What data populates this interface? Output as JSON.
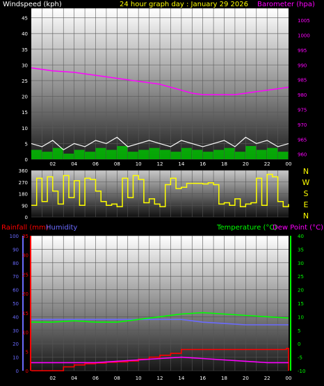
{
  "header": {
    "windspeed_label": "Windspeed (kph)",
    "title": "24 hour graph day : January 29 2026",
    "barometer_label": "Barometer (hpa)"
  },
  "bottom_header": {
    "rainfall_label": "Rainfall (mm)",
    "humidity_label": "Humidity",
    "temperature_label": "Temperature (°C)",
    "dewpoint_label": "Dew Point (°C)"
  },
  "compass": [
    "N",
    "W",
    "S",
    "E",
    "N"
  ],
  "colors": {
    "wind": "#ffffff",
    "gust_fill": "#00c800",
    "barometer": "#ff00ff",
    "direction": "#ffff00",
    "rain": "#ff0000",
    "humidity": "#6a6aff",
    "temperature": "#00ff00",
    "dewpoint": "#ff00ff",
    "rain_axis": "#ff0000",
    "humidity_axis": "#6a6aff",
    "temp_axis": "#00ff00"
  },
  "chart_data": [
    {
      "type": "line",
      "name": "wind-barometer",
      "x_ticks": [
        "02",
        "04",
        "06",
        "08",
        "10",
        "12",
        "14",
        "16",
        "18",
        "20",
        "22",
        "00"
      ],
      "y_left_ticks": [
        0,
        5,
        10,
        15,
        20,
        25,
        30,
        35,
        40,
        45
      ],
      "y_left_range": [
        0,
        48
      ],
      "y_right_ticks": [
        960,
        965,
        970,
        975,
        980,
        985,
        990,
        995,
        1000,
        1005
      ],
      "y_right_range": [
        958.3,
        1009
      ],
      "grid": true,
      "series": [
        {
          "name": "Windspeed (kph)",
          "x": [
            0,
            1,
            2,
            3,
            4,
            5,
            6,
            7,
            8,
            9,
            10,
            11,
            12,
            13,
            14,
            15,
            16,
            17,
            18,
            19,
            20,
            21,
            22,
            23,
            24
          ],
          "y": [
            5,
            4,
            6,
            3,
            5,
            4,
            6,
            5,
            7,
            4,
            5,
            6,
            5,
            4,
            6,
            5,
            4,
            5,
            6,
            4,
            7,
            5,
            6,
            4,
            5
          ]
        },
        {
          "name": "Barometer (hpa)",
          "x": [
            0,
            2,
            4,
            6,
            8,
            10,
            12,
            14,
            15,
            16,
            17,
            18,
            19,
            20,
            21,
            22,
            23,
            24
          ],
          "y": [
            989,
            988,
            987.5,
            986.5,
            985.5,
            984.5,
            983.5,
            981.5,
            980.5,
            980,
            980,
            980,
            980,
            980.5,
            981,
            981.5,
            982,
            982.5
          ]
        }
      ]
    },
    {
      "type": "line",
      "name": "wind-direction",
      "x_ticks": [
        "02",
        "04",
        "06",
        "08",
        "10",
        "12",
        "14",
        "16",
        "18",
        "20",
        "22",
        "00"
      ],
      "y_ticks": [
        0,
        90,
        180,
        270,
        360
      ],
      "y_range": [
        0,
        360
      ],
      "series": [
        {
          "name": "Wind Direction",
          "x": [
            0,
            0.5,
            1,
            1.5,
            2,
            2.5,
            3,
            3.5,
            4,
            4.5,
            5,
            5.5,
            6,
            6.5,
            7,
            7.5,
            8,
            8.5,
            9,
            9.5,
            10,
            10.5,
            11,
            11.5,
            12,
            12.5,
            13,
            13.5,
            14,
            14.5,
            15,
            15.5,
            16,
            16.5,
            17,
            17.5,
            18,
            18.5,
            19,
            19.5,
            20,
            20.5,
            21,
            21.5,
            22,
            22.5,
            23,
            23.5,
            24
          ],
          "y": [
            90,
            300,
            120,
            310,
            200,
            100,
            320,
            150,
            280,
            90,
            300,
            290,
            200,
            120,
            90,
            100,
            80,
            300,
            150,
            320,
            290,
            110,
            140,
            100,
            80,
            250,
            300,
            220,
            230,
            260,
            260,
            260,
            255,
            265,
            250,
            100,
            110,
            90,
            140,
            80,
            100,
            110,
            300,
            90,
            330,
            310,
            120,
            80,
            100
          ]
        }
      ]
    },
    {
      "type": "line",
      "name": "rain-humidity-temperature",
      "x_ticks": [
        "02",
        "04",
        "06",
        "08",
        "10",
        "12",
        "14",
        "16",
        "18",
        "20",
        "22",
        "00"
      ],
      "y_humidity_ticks": [
        0,
        10,
        20,
        30,
        40,
        50,
        60,
        70,
        80,
        90,
        100
      ],
      "y_rain_ticks": [
        0,
        5,
        10,
        15,
        20,
        25,
        30,
        35
      ],
      "y_rain_range": [
        0,
        35
      ],
      "y_temp_ticks": [
        -10,
        -5,
        0,
        5,
        10,
        15,
        20,
        25,
        30,
        35,
        40
      ],
      "y_temp_range": [
        -10,
        40
      ],
      "grid": true,
      "series": [
        {
          "name": "Rainfall (mm)",
          "x": [
            0,
            2,
            3,
            4,
            5,
            6,
            7,
            8,
            9,
            10,
            11,
            12,
            13,
            14,
            16,
            18,
            20,
            22,
            23.8,
            24
          ],
          "y": [
            0,
            0,
            1,
            1.5,
            1.8,
            2,
            2.2,
            2.3,
            2.5,
            3,
            3.5,
            4,
            4.5,
            5.5,
            5.5,
            5.5,
            5.5,
            5.5,
            5.8,
            0
          ]
        },
        {
          "name": "Humidity",
          "x": [
            0,
            2,
            4,
            6,
            8,
            10,
            12,
            14,
            16,
            18,
            20,
            22,
            24
          ],
          "y": [
            38,
            38,
            38,
            38,
            38,
            38,
            38,
            38,
            36,
            35,
            34,
            34,
            34
          ]
        },
        {
          "name": "Temperature (°C)",
          "x": [
            0,
            2,
            4,
            6,
            8,
            10,
            12,
            14,
            16,
            18,
            20,
            22,
            24
          ],
          "y": [
            8,
            8,
            8.5,
            8,
            8,
            9,
            10,
            11,
            11.5,
            11,
            10.5,
            10,
            9.5
          ]
        },
        {
          "name": "Dew Point (°C)",
          "x": [
            0,
            2,
            4,
            6,
            8,
            10,
            12,
            14,
            16,
            18,
            20,
            22,
            24
          ],
          "y": [
            -7,
            -7,
            -7,
            -7,
            -6.5,
            -6,
            -5.5,
            -5,
            -5.5,
            -6,
            -6.5,
            -7,
            -7
          ]
        }
      ]
    }
  ]
}
